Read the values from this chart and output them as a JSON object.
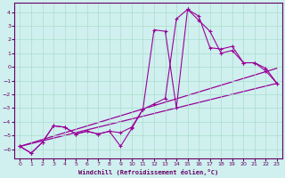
{
  "xlabel": "Windchill (Refroidissement éolien,°C)",
  "bg_color": "#cff0ee",
  "line_color": "#990099",
  "grid_color": "#aaddcc",
  "xlim": [
    -0.5,
    23.5
  ],
  "ylim": [
    -6.7,
    4.7
  ],
  "xticks": [
    0,
    1,
    2,
    3,
    4,
    5,
    6,
    7,
    8,
    9,
    10,
    11,
    12,
    13,
    14,
    15,
    16,
    17,
    18,
    19,
    20,
    21,
    22,
    23
  ],
  "yticks": [
    -6,
    -5,
    -4,
    -3,
    -2,
    -1,
    0,
    1,
    2,
    3,
    4
  ],
  "line1_x": [
    0,
    1,
    2,
    3,
    4,
    5,
    6,
    7,
    8,
    9,
    10,
    11,
    12,
    13,
    14,
    15,
    16,
    17,
    18,
    19,
    20,
    21,
    22,
    23
  ],
  "line1_y": [
    -5.8,
    -6.3,
    -5.5,
    -4.3,
    -4.4,
    -4.9,
    -4.7,
    -4.9,
    -4.7,
    -4.8,
    -4.4,
    -3.1,
    -2.7,
    -2.3,
    3.5,
    4.2,
    3.7,
    1.4,
    1.3,
    1.5,
    0.3,
    0.3,
    -0.1,
    -1.2
  ],
  "line2_x": [
    0,
    1,
    2,
    3,
    4,
    5,
    6,
    7,
    8,
    9,
    10,
    11,
    12,
    13,
    14,
    15,
    16,
    17,
    18,
    19,
    20,
    21,
    22,
    23
  ],
  "line2_y": [
    -5.8,
    -6.3,
    -5.5,
    -4.3,
    -4.4,
    -4.9,
    -4.7,
    -4.9,
    -4.7,
    -5.8,
    -4.5,
    -3.1,
    2.7,
    2.6,
    -3.0,
    4.2,
    3.4,
    2.6,
    1.0,
    1.2,
    0.3,
    0.3,
    -0.3,
    -1.2
  ],
  "line3_x": [
    0,
    23
  ],
  "line3_y": [
    -5.8,
    -1.2
  ],
  "line4_x": [
    0,
    23
  ],
  "line4_y": [
    -5.8,
    -0.1
  ]
}
